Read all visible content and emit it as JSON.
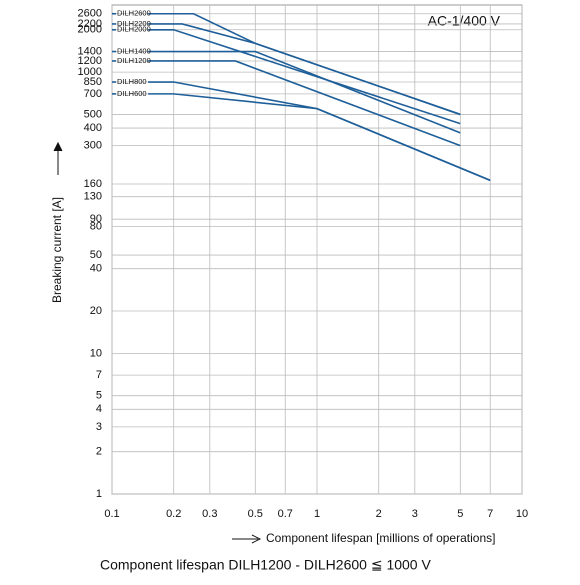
{
  "chart_data": {
    "type": "line",
    "annotation": "AC-1/400 V",
    "y_label": "Breaking current [A]",
    "x_label": "Component lifespan [millions of operations]",
    "footnote": "Component lifespan DILH1200 - DILH2600 ≦ 1000 V",
    "log_x": true,
    "log_y": true,
    "grid": true,
    "xlim": [
      0.1,
      10
    ],
    "ylim": [
      1,
      3000
    ],
    "xticks": [
      0.1,
      0.2,
      0.3,
      0.5,
      0.7,
      1,
      2,
      3,
      5,
      7,
      10
    ],
    "yticks": [
      1,
      2,
      3,
      4,
      5,
      7,
      10,
      20,
      40,
      50,
      80,
      90,
      130,
      160,
      300,
      400,
      500,
      700,
      850,
      1000,
      1200,
      1400,
      2000,
      2200,
      2600
    ],
    "series": [
      {
        "name": "DILH2600",
        "color": "#1f5f99",
        "x": [
          0.15,
          0.25,
          0.5,
          5
        ],
        "values": [
          2600,
          2600,
          1600,
          500
        ]
      },
      {
        "name": "DILH2200",
        "color": "#1f5f99",
        "x": [
          0.15,
          0.22,
          0.5,
          5
        ],
        "values": [
          2200,
          2200,
          1600,
          500
        ]
      },
      {
        "name": "DILH2000",
        "color": "#1f5f99",
        "x": [
          0.15,
          0.2,
          5
        ],
        "values": [
          2000,
          2000,
          430
        ]
      },
      {
        "name": "DILH1400",
        "color": "#1f5f99",
        "x": [
          0.15,
          0.5,
          5
        ],
        "values": [
          1400,
          1400,
          370
        ]
      },
      {
        "name": "DILH1200",
        "color": "#1f5f99",
        "x": [
          0.15,
          0.4,
          5
        ],
        "values": [
          1200,
          1200,
          300
        ]
      },
      {
        "name": "DILH800",
        "color": "#1f5f99",
        "x": [
          0.15,
          0.2,
          1,
          7
        ],
        "values": [
          850,
          850,
          550,
          170
        ]
      },
      {
        "name": "DILH600",
        "color": "#1f5f99",
        "x": [
          0.15,
          0.2,
          1,
          7
        ],
        "values": [
          700,
          700,
          550,
          170
        ]
      }
    ]
  }
}
